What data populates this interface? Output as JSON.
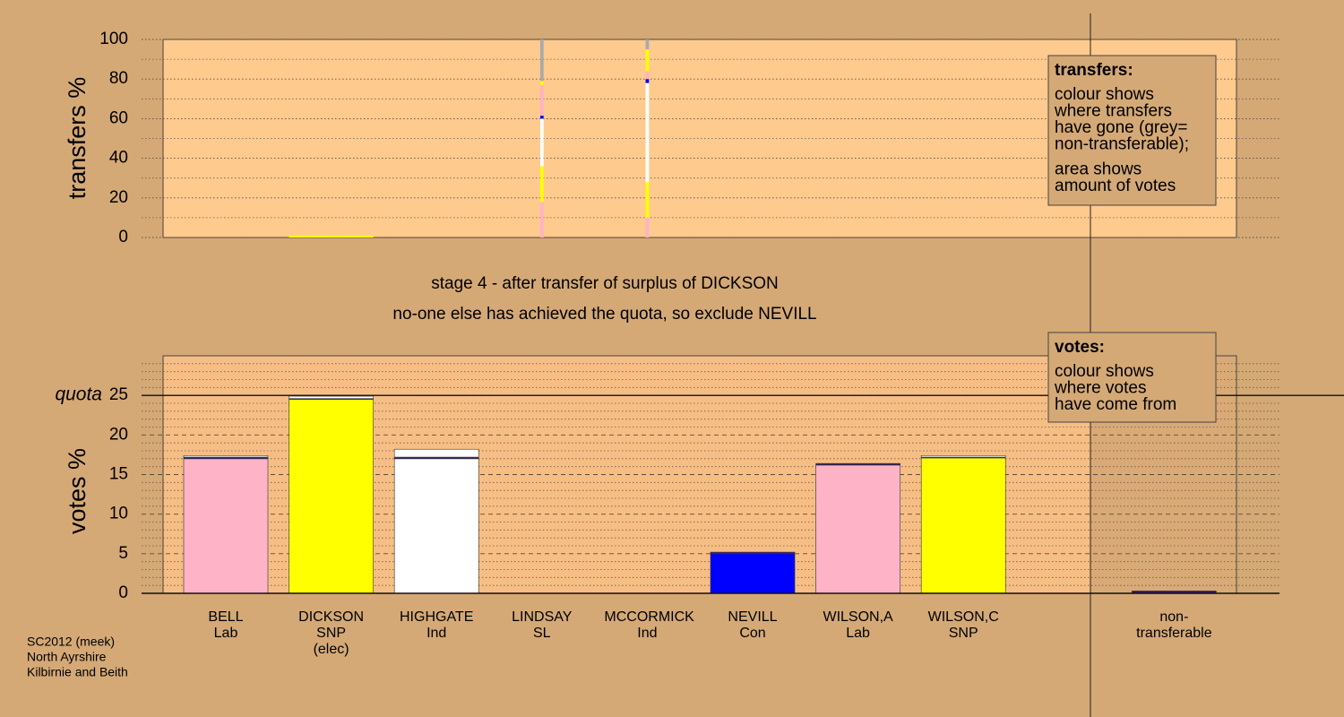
{
  "chart_data": [
    {
      "type": "bar",
      "stacked": true,
      "ylabel": "transfers %",
      "ylim": [
        0,
        100
      ],
      "yticks": [
        0,
        20,
        40,
        60,
        80,
        100
      ],
      "minor_yticks": [
        10,
        30,
        50,
        70,
        90
      ],
      "widths": [
        0,
        1,
        0,
        0.04,
        0.04,
        0,
        0,
        0,
        0,
        0
      ],
      "series": [
        {
          "color": "#ffb3c6",
          "values": [
            null,
            null,
            null,
            18,
            10,
            null,
            null,
            null,
            null,
            null
          ]
        },
        {
          "color": "#ffff00",
          "values": [
            null,
            1,
            null,
            18,
            18,
            null,
            null,
            null,
            null,
            null
          ]
        },
        {
          "color": "#ffffff",
          "values": [
            null,
            null,
            null,
            24,
            50,
            null,
            null,
            null,
            null,
            null
          ]
        },
        {
          "color": "#0000ff",
          "values": [
            null,
            null,
            null,
            1.5,
            2,
            null,
            null,
            null,
            null,
            null
          ]
        },
        {
          "color": "#ffb3c6",
          "values": [
            null,
            null,
            null,
            15.5,
            4,
            null,
            null,
            null,
            null,
            null
          ]
        },
        {
          "color": "#ffff00",
          "values": [
            null,
            null,
            null,
            2,
            11,
            null,
            null,
            null,
            null,
            null
          ]
        },
        {
          "color": "#aaaaaa",
          "values": [
            null,
            null,
            null,
            21,
            5,
            null,
            null,
            null,
            null,
            null
          ]
        }
      ],
      "legend": {
        "title": "transfers:",
        "paragraphs": [
          [
            "colour shows",
            "where transfers",
            "have gone (grey=",
            "non-transferable);"
          ],
          [
            "area shows",
            "amount of votes"
          ]
        ]
      }
    },
    {
      "type": "bar",
      "stacked": true,
      "ylabel": "votes %",
      "categories": [
        "BELL",
        "DICKSON",
        "HIGHGATE",
        "LINDSAY",
        "MCCORMICK",
        "NEVILL",
        "WILSON,A",
        "WILSON,C",
        null,
        "non-transferable"
      ],
      "category_sublabels": [
        [
          "Lab"
        ],
        [
          "SNP",
          "(elec)"
        ],
        [
          "Ind"
        ],
        [
          "SL"
        ],
        [
          "Ind"
        ],
        [
          "Con"
        ],
        [
          "Lab"
        ],
        [
          "SNP"
        ],
        null,
        null
      ],
      "ylim": [
        0,
        30
      ],
      "yticks": [
        0,
        5,
        10,
        15,
        20,
        25
      ],
      "minor_yticks": [
        1,
        2,
        3,
        4,
        6,
        7,
        8,
        9,
        11,
        12,
        13,
        14,
        16,
        17,
        18,
        19,
        21,
        22,
        23,
        24,
        26,
        27,
        28,
        29
      ],
      "reference_line": {
        "value": 25,
        "label": "quota"
      },
      "series": [
        {
          "colors": [
            "#ffb3c6",
            "#ffff00",
            "#ffffff",
            "#ffffff",
            "#ffffff",
            "#0000ff",
            "#ffb3c6",
            "#ffff00",
            null,
            "#aaaaaa"
          ],
          "values": [
            17.0,
            24.5,
            17.0,
            0,
            0,
            5.0,
            16.2,
            17.1,
            null,
            0
          ]
        },
        {
          "color": "#3a1a6e",
          "values": [
            0.2,
            0.1,
            0.2,
            0,
            0,
            0.2,
            0.2,
            0.1,
            null,
            0.3
          ]
        },
        {
          "color": "#ffffff",
          "values": [
            0.2,
            0.3,
            1.0,
            0,
            0,
            0,
            0,
            0.2,
            null,
            0
          ]
        }
      ],
      "legend": {
        "title": "votes:",
        "paragraphs": [
          [
            "colour shows",
            "where votes",
            "have come from"
          ]
        ]
      }
    }
  ],
  "stage_text": [
    "stage 4 - after transfer of surplus of DICKSON",
    "no-one else has achieved the quota, so exclude NEVILL"
  ],
  "footer": [
    "SC2012 (meek)",
    "North Ayrshire",
    "Kilbirnie and Beith"
  ]
}
